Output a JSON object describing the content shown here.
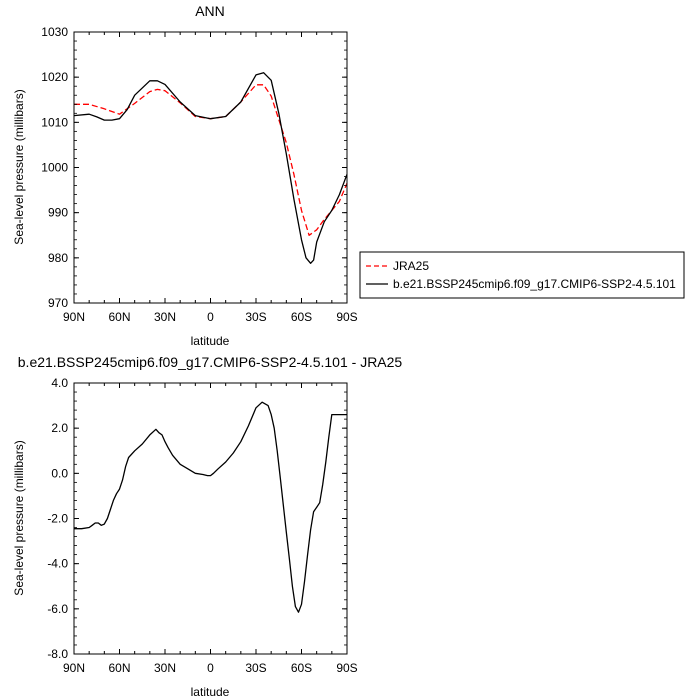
{
  "chart_data": [
    {
      "type": "line",
      "title": "ANN",
      "xlabel": "latitude",
      "ylabel": "Sea-level pressure (millibars)",
      "xlim": [
        90,
        -90
      ],
      "ylim": [
        970,
        1030
      ],
      "x_ticks": [
        90,
        60,
        30,
        0,
        -30,
        -60,
        -90
      ],
      "x_tick_labels": [
        "90N",
        "60N",
        "30N",
        "0",
        "30S",
        "60S",
        "90S"
      ],
      "y_ticks": [
        970,
        980,
        990,
        1000,
        1010,
        1020,
        1030
      ],
      "y_tick_labels": [
        "970",
        "980",
        "990",
        "1000",
        "1010",
        "1020",
        "1030"
      ],
      "legend_position": "right",
      "series": [
        {
          "name": "JRA25",
          "color": "#ff0000",
          "dash": "dashed",
          "x": [
            90,
            80,
            70,
            60,
            50,
            40,
            35,
            30,
            20,
            10,
            0,
            -10,
            -20,
            -30,
            -35,
            -40,
            -50,
            -55,
            -60,
            -65,
            -70,
            -75,
            -80,
            -85,
            -90
          ],
          "y": [
            1014,
            1014,
            1013,
            1011.8,
            1014.2,
            1016.8,
            1017.3,
            1017,
            1014.3,
            1011.3,
            1010.8,
            1011.3,
            1014.5,
            1018.3,
            1018.3,
            1015.8,
            1005.5,
            998.5,
            990.5,
            985,
            986.2,
            988.5,
            990.5,
            992.5,
            996.5
          ]
        },
        {
          "name": "b.e21.BSSP245cmip6.f09_g17.CMIP6-SSP2-4.5.101",
          "color": "#000000",
          "dash": "solid",
          "x": [
            90,
            80,
            75,
            70,
            65,
            60,
            55,
            50,
            40,
            35,
            30,
            20,
            10,
            0,
            -10,
            -20,
            -30,
            -35,
            -40,
            -45,
            -50,
            -55,
            -60,
            -63,
            -66,
            -68,
            -70,
            -75,
            -80,
            -85,
            -90
          ],
          "y": [
            1011.5,
            1011.8,
            1011.2,
            1010.5,
            1010.5,
            1010.8,
            1012.8,
            1016,
            1019.2,
            1019.2,
            1018.4,
            1014.5,
            1011.5,
            1010.8,
            1011.3,
            1014.5,
            1020.5,
            1021,
            1019.3,
            1012,
            1003,
            993,
            984,
            980,
            978.8,
            979.5,
            983.5,
            988,
            990.5,
            994,
            998.5
          ]
        }
      ]
    },
    {
      "type": "line",
      "title": "b.e21.BSSP245cmip6.f09_g17.CMIP6-SSP2-4.5.101 - JRA25",
      "xlabel": "latitude",
      "ylabel": "Sea-level pressure (millibars)",
      "xlim": [
        90,
        -90
      ],
      "ylim": [
        -8,
        4
      ],
      "x_ticks": [
        90,
        60,
        30,
        0,
        -30,
        -60,
        -90
      ],
      "x_tick_labels": [
        "90N",
        "60N",
        "30N",
        "0",
        "30S",
        "60S",
        "90S"
      ],
      "y_ticks": [
        -8,
        -6,
        -4,
        -2,
        0,
        2,
        4
      ],
      "y_tick_labels": [
        "-8.0",
        "-6.0",
        "-4.0",
        "-2.0",
        "0.0",
        "2.0",
        "4.0"
      ],
      "series": [
        {
          "color": "#000000",
          "x": [
            90,
            85,
            80,
            78,
            76,
            74,
            72,
            70,
            68,
            66,
            64,
            62,
            60,
            58,
            56,
            54,
            50,
            45,
            40,
            36,
            34,
            32,
            30,
            28,
            25,
            20,
            15,
            10,
            5,
            2,
            0,
            -2,
            -5,
            -10,
            -15,
            -20,
            -25,
            -30,
            -34,
            -38,
            -40,
            -42,
            -44,
            -46,
            -48,
            -50,
            -52,
            -54,
            -56,
            -58,
            -60,
            -62,
            -64,
            -66,
            -68,
            -70,
            -72,
            -74,
            -76,
            -78,
            -80,
            -82,
            -84,
            -86,
            -88,
            -90
          ],
          "y": [
            -2.45,
            -2.45,
            -2.4,
            -2.3,
            -2.2,
            -2.2,
            -2.3,
            -2.25,
            -2.0,
            -1.6,
            -1.2,
            -0.9,
            -0.7,
            -0.3,
            0.3,
            0.7,
            1.0,
            1.3,
            1.7,
            1.95,
            1.8,
            1.7,
            1.4,
            1.15,
            0.8,
            0.4,
            0.2,
            0.0,
            -0.05,
            -0.1,
            -0.1,
            0.0,
            0.2,
            0.5,
            0.9,
            1.4,
            2.1,
            2.9,
            3.15,
            3.0,
            2.6,
            2.0,
            1.0,
            -0.2,
            -1.4,
            -2.6,
            -3.8,
            -5.0,
            -5.9,
            -6.15,
            -5.8,
            -4.8,
            -3.6,
            -2.5,
            -1.7,
            -1.5,
            -1.3,
            -0.5,
            0.5,
            1.6,
            2.6,
            2.6,
            2.6,
            2.6,
            2.6,
            2.6
          ]
        }
      ]
    }
  ]
}
